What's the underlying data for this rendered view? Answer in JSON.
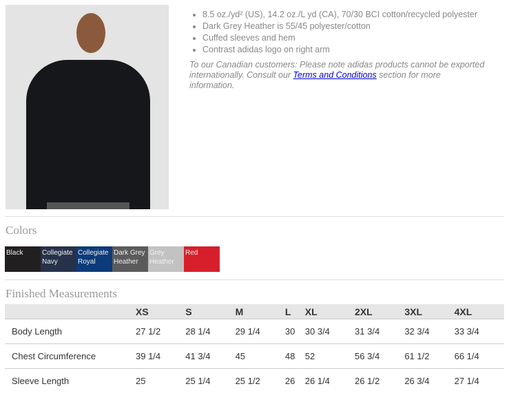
{
  "features": [
    "8.5 oz./yd² (US), 14.2 oz./L yd (CA), 70/30 BCI cotton/recycled polyester",
    "Dark Grey Heather is 55/45 polyester/cotton",
    "Cuffed sleeves and hem",
    "Contrast adidas logo on right arm"
  ],
  "note": {
    "before": "To our Canadian customers: Please note adidas products cannot be exported internationally. Consult our ",
    "link": "Terms and Conditions",
    "after": " section for more information."
  },
  "colors_title": "Colors",
  "colors": [
    {
      "name": "Black",
      "hex": "#221f20"
    },
    {
      "name": "Collegiate Navy",
      "hex": "#25324a"
    },
    {
      "name": "Collegiate Royal",
      "hex": "#0d3a7a"
    },
    {
      "name": "Dark Grey Heather",
      "hex": "#5b5b5b"
    },
    {
      "name": "Grey Heather",
      "hex": "#c2c2c2"
    },
    {
      "name": "Red",
      "hex": "#d71f2b"
    }
  ],
  "measurements_title": "Finished Measurements",
  "sizes": [
    "",
    "XS",
    "S",
    "M",
    "L",
    "XL",
    "2XL",
    "3XL",
    "4XL"
  ],
  "rows": [
    [
      "Body Length",
      "27 1/2",
      "28 1/4",
      "29 1/4",
      "30",
      "30 3/4",
      "31 3/4",
      "32 3/4",
      "33 3/4"
    ],
    [
      "Chest Circumference",
      "39 1/4",
      "41 3/4",
      "45",
      "48",
      "52",
      "56 3/4",
      "61 1/2",
      "66 1/4"
    ],
    [
      "Sleeve Length",
      "25",
      "25 1/4",
      "25 1/2",
      "26",
      "26 1/4",
      "26 1/2",
      "26 3/4",
      "27 1/4"
    ]
  ]
}
